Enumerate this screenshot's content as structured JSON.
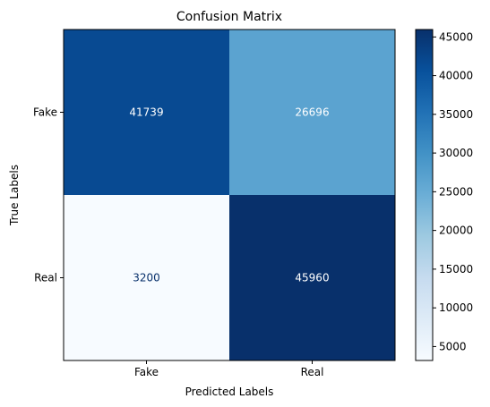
{
  "chart_data": {
    "type": "heatmap",
    "title": "Confusion Matrix",
    "xlabel": "Predicted Labels",
    "ylabel": "True Labels",
    "x_categories": [
      "Fake",
      "Real"
    ],
    "y_categories": [
      "Fake",
      "Real"
    ],
    "values": [
      [
        41739,
        26696
      ],
      [
        3200,
        45960
      ]
    ],
    "colormap": "Blues",
    "colorbar": {
      "range": [
        3200,
        45960
      ],
      "ticks": [
        5000,
        10000,
        15000,
        20000,
        25000,
        30000,
        35000,
        40000,
        45000
      ]
    },
    "text_colors": {
      "on_light": "#08306b",
      "on_dark": "#ffffff"
    }
  }
}
